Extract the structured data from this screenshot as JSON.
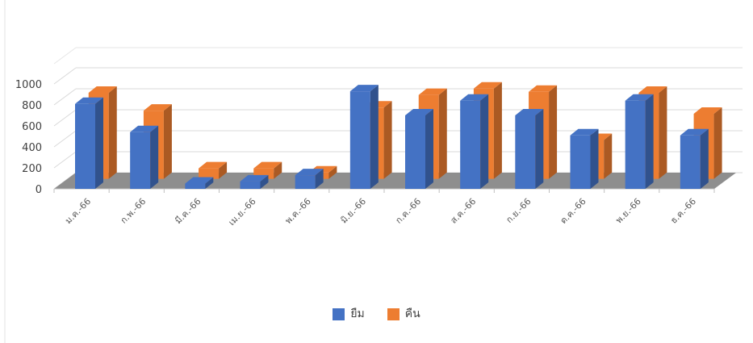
{
  "chart_data": {
    "type": "bar",
    "style": "3d-column",
    "title": "",
    "xlabel": "",
    "ylabel": "",
    "ylim": [
      0,
      1000
    ],
    "yticks": [
      0,
      200,
      400,
      600,
      800,
      1000
    ],
    "grid": true,
    "legend": "bottom",
    "categories": [
      "ม.ค.-66",
      "ก.พ.-66",
      "มี.ค.-66",
      "เม.ย.-66",
      "พ.ค.-66",
      "มิ.ย.-66",
      "ก.ค.-66",
      "ส.ค.-66",
      "ก.ย.-66",
      "ต.ค.-66",
      "พ.ย.-66",
      "ธ.ค.-66"
    ],
    "series": [
      {
        "name": "ยืม",
        "color": "#4472C4",
        "values": [
          810,
          540,
          50,
          70,
          130,
          930,
          700,
          840,
          700,
          510,
          840,
          510
        ]
      },
      {
        "name": "คืน",
        "color": "#ED7D31",
        "values": [
          820,
          650,
          100,
          100,
          60,
          680,
          800,
          860,
          830,
          370,
          820,
          620
        ]
      }
    ]
  }
}
